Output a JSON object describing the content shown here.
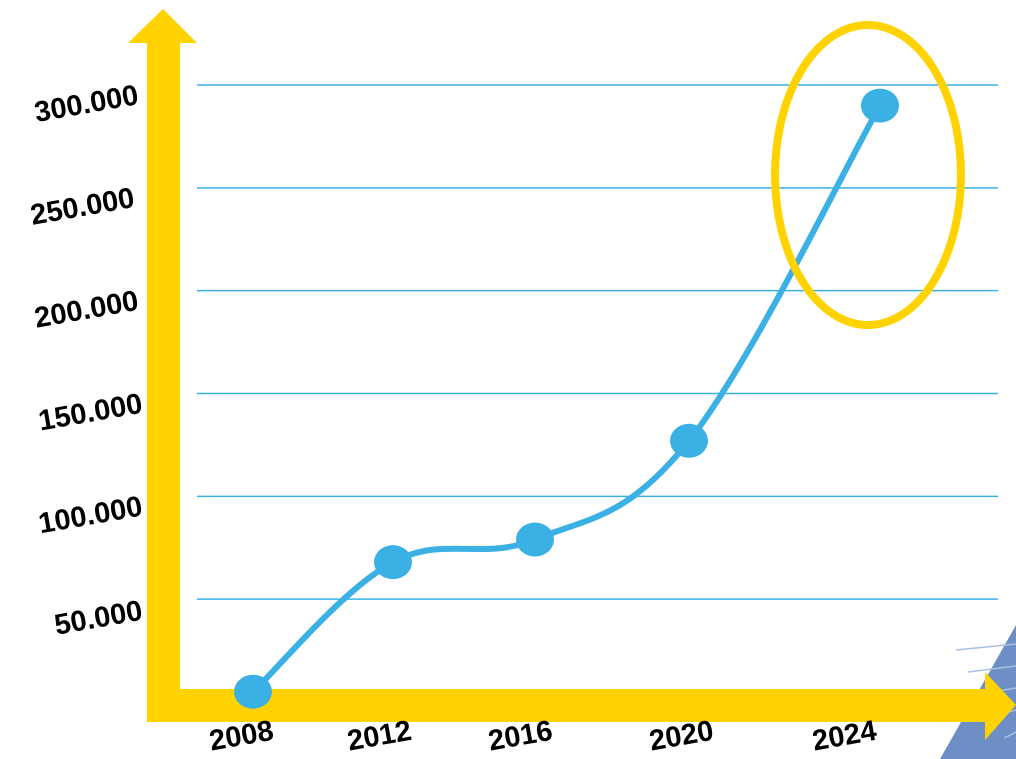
{
  "chart_data": {
    "type": "line",
    "title": "",
    "xlabel": "",
    "ylabel": "",
    "categories": [
      "2008",
      "2012",
      "2016",
      "2020",
      "2024"
    ],
    "series": [
      {
        "values": [
          5000,
          68000,
          79000,
          127000,
          290000
        ],
        "color": "#3bb0e4"
      }
    ],
    "y_ticks": [
      50000,
      100000,
      150000,
      200000,
      250000,
      300000
    ],
    "y_tick_labels": [
      "50.000",
      "100.000",
      "150.000",
      "200.000",
      "250.000",
      "300.000"
    ],
    "x_tick_labels": [
      "2008",
      "2012",
      "2016",
      "2020",
      "2024"
    ],
    "ylim": [
      0,
      300000
    ],
    "grid": true,
    "highlighted_category": "2024"
  },
  "colors": {
    "axis": "#ffd200",
    "grid": "#3bb0e4",
    "line": "#3bb0e4",
    "highlight": "#ffd200",
    "panel": "#6e8fc6"
  }
}
